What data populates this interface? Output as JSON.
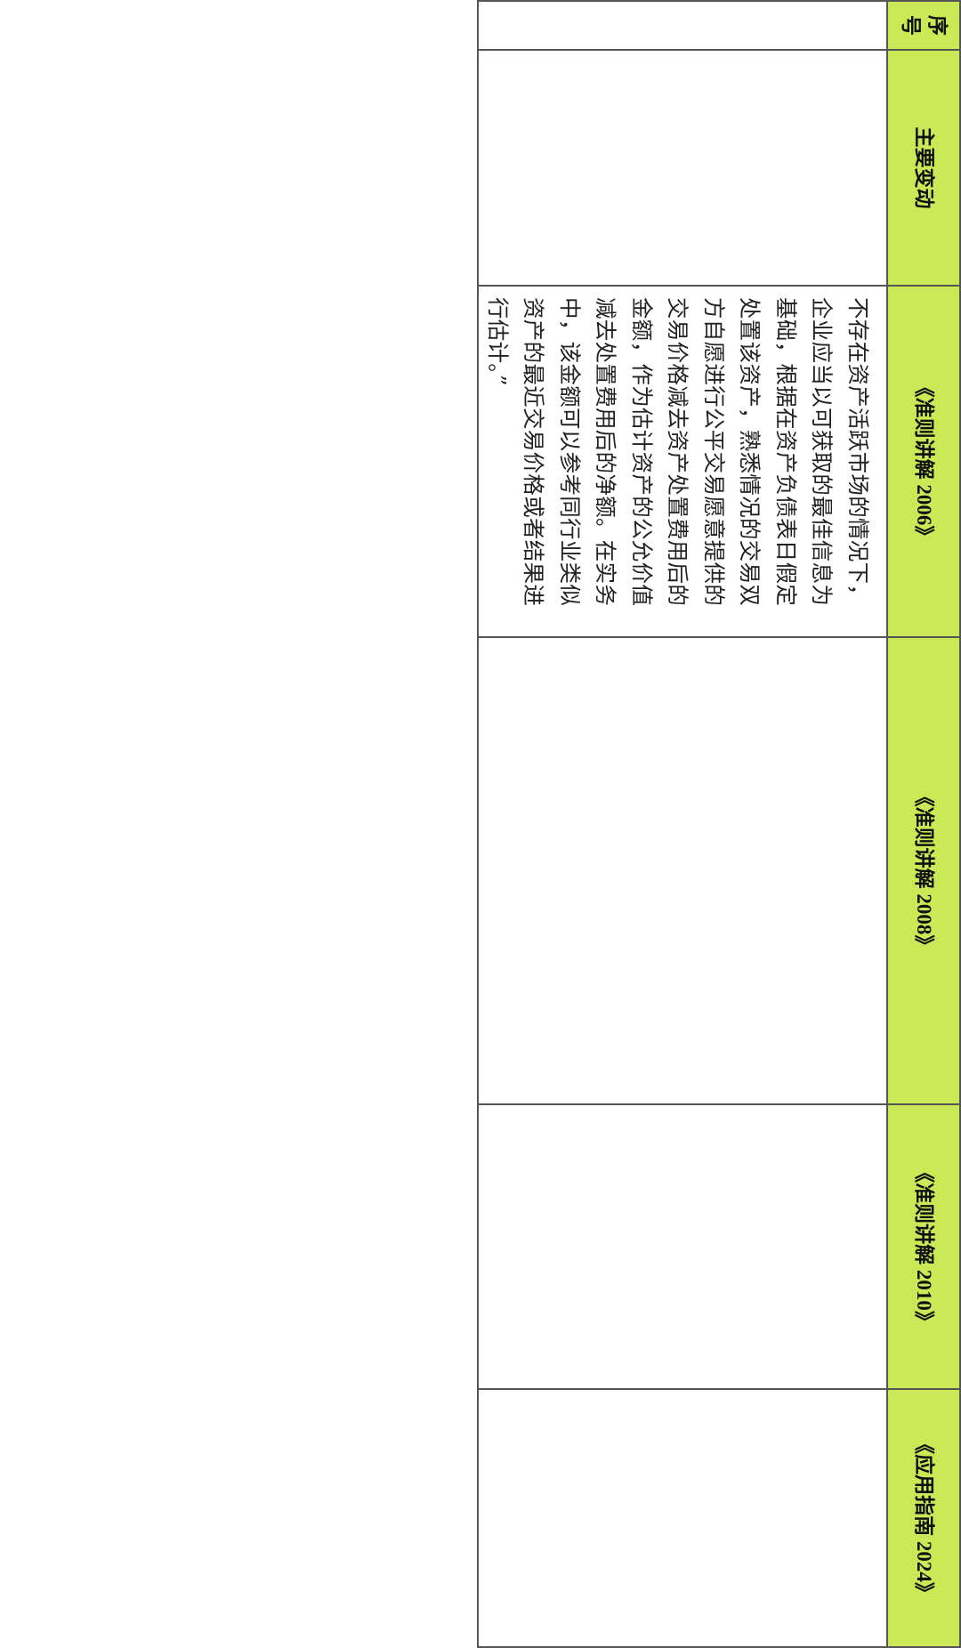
{
  "table": {
    "header_color": "#cbe957",
    "headers": [
      "序号",
      "主要变动",
      "《准则讲解 2006》",
      "《准则讲解 2008》",
      "《准则讲解 2010》",
      "《应用指南 2024》"
    ],
    "row": {
      "index": "",
      "main_change": "",
      "guide_2006": "不存在资产活跃市场的情况下，企业应当以可获取的最佳信息为基础，根据在资产负债表日假定处置该资产，熟悉情况的交易双方自愿进行公平交易愿意提供的交易价格减去资产处置费用后的金额，作为估计资产的公允价值减去处置费用后的净额。在实务中，该金额可以参考同行业类似资产的最近交易价格或者结果进行估计。”",
      "guide_2008": "",
      "guide_2010": "",
      "guide_2024": ""
    }
  }
}
